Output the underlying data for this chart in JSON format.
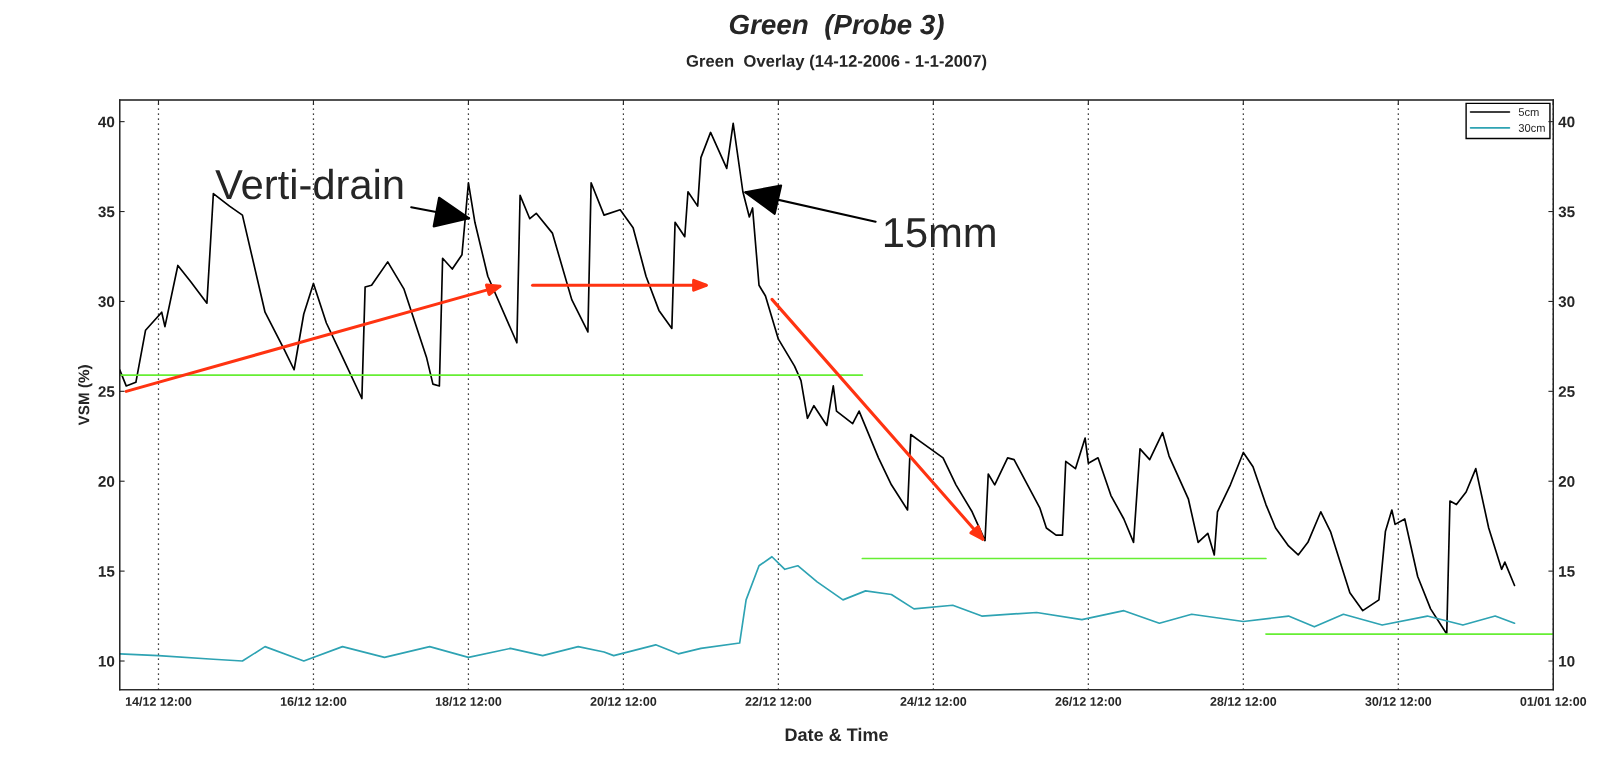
{
  "chart_data": {
    "type": "line",
    "title": "Green  (Probe 3)",
    "subtitle": "Green  Overlay (14-12-2006 - 1-1-2007)",
    "xlabel": "Date & Time",
    "ylabel": "VSM (%)",
    "xlim": [
      "2006-12-14T00:00",
      "2007-01-01T12:00"
    ],
    "xticks": [
      {
        "value": "2006-12-14T12:00",
        "label": "14/12 12:00"
      },
      {
        "value": "2006-12-16T12:00",
        "label": "16/12 12:00"
      },
      {
        "value": "2006-12-18T12:00",
        "label": "18/12 12:00"
      },
      {
        "value": "2006-12-20T12:00",
        "label": "20/12 12:00"
      },
      {
        "value": "2006-12-22T12:00",
        "label": "22/12 12:00"
      },
      {
        "value": "2006-12-24T12:00",
        "label": "24/12 12:00"
      },
      {
        "value": "2006-12-26T12:00",
        "label": "26/12 12:00"
      },
      {
        "value": "2006-12-28T12:00",
        "label": "28/12 12:00"
      },
      {
        "value": "2006-12-30T12:00",
        "label": "30/12 12:00"
      },
      {
        "value": "2007-01-01T12:00",
        "label": "01/01 12:00"
      }
    ],
    "ylim": [
      8.4,
      41.2
    ],
    "yticks": [
      10,
      15,
      20,
      25,
      30,
      35,
      40
    ],
    "y2lim": [
      8.4,
      41.2
    ],
    "y2ticks": [
      10,
      15,
      20,
      25,
      30,
      35,
      40
    ],
    "grid": "x",
    "legend": "top right",
    "annotations": [
      {
        "text": "Verti-drain",
        "x": "2006-12-18T13:00",
        "y": 34.6
      },
      {
        "text": "15mm",
        "x": "2006-12-22T01:00",
        "y": 36.1
      }
    ],
    "series": [
      {
        "name": "5cm",
        "color": "#000000",
        "x": [
          "2006-12-14T00:00",
          "2006-12-14T02:00",
          "2006-12-14T05:00",
          "2006-12-14T08:00",
          "2006-12-14T13:00",
          "2006-12-14T14:00",
          "2006-12-14T18:00",
          "2006-12-14T22:00",
          "2006-12-15T03:00",
          "2006-12-15T04:00",
          "2006-12-15T05:00",
          "2006-12-15T10:00",
          "2006-12-15T14:00",
          "2006-12-15T21:00",
          "2006-12-16T03:00",
          "2006-12-16T06:00",
          "2006-12-16T09:00",
          "2006-12-16T12:00",
          "2006-12-16T16:00",
          "2006-12-16T21:00",
          "2006-12-17T03:00",
          "2006-12-17T04:00",
          "2006-12-17T06:00",
          "2006-12-17T11:00",
          "2006-12-17T16:00",
          "2006-12-17T23:00",
          "2006-12-18T01:00",
          "2006-12-18T03:00",
          "2006-12-18T04:00",
          "2006-12-18T07:00",
          "2006-12-18T10:00",
          "2006-12-18T12:00",
          "2006-12-18T14:00",
          "2006-12-18T18:00",
          "2006-12-19T03:00",
          "2006-12-19T04:00",
          "2006-12-19T07:00",
          "2006-12-19T09:00",
          "2006-12-19T14:00",
          "2006-12-19T20:00",
          "2006-12-20T01:00",
          "2006-12-20T02:00",
          "2006-12-20T06:00",
          "2006-12-20T11:00",
          "2006-12-20T15:00",
          "2006-12-20T19:00",
          "2006-12-20T23:00",
          "2006-12-21T03:00",
          "2006-12-21T04:00",
          "2006-12-21T07:00",
          "2006-12-21T08:00",
          "2006-12-21T11:00",
          "2006-12-21T12:00",
          "2006-12-21T15:00",
          "2006-12-21T20:00",
          "2006-12-21T22:00",
          "2006-12-22T01:00",
          "2006-12-22T03:00",
          "2006-12-22T04:00",
          "2006-12-22T06:00",
          "2006-12-22T08:00",
          "2006-12-22T12:00",
          "2006-12-22T17:00",
          "2006-12-22T19:00",
          "2006-12-22T21:00",
          "2006-12-22T23:00",
          "2006-12-23T03:00",
          "2006-12-23T05:00",
          "2006-12-23T06:00",
          "2006-12-23T11:00",
          "2006-12-23T13:00",
          "2006-12-23T19:00",
          "2006-12-23T23:00",
          "2006-12-24T04:00",
          "2006-12-24T05:00",
          "2006-12-24T08:00",
          "2006-12-24T15:00",
          "2006-12-24T19:00",
          "2006-12-25T00:00",
          "2006-12-25T04:00",
          "2006-12-25T05:00",
          "2006-12-25T07:00",
          "2006-12-25T11:00",
          "2006-12-25T13:00",
          "2006-12-25T21:00",
          "2006-12-25T23:00",
          "2006-12-26T02:00",
          "2006-12-26T04:00",
          "2006-12-26T05:00",
          "2006-12-26T08:00",
          "2006-12-26T11:00",
          "2006-12-26T12:00",
          "2006-12-26T15:00",
          "2006-12-26T19:00",
          "2006-12-26T23:00",
          "2006-12-27T02:00",
          "2006-12-27T04:00",
          "2006-12-27T07:00",
          "2006-12-27T11:00",
          "2006-12-27T13:00",
          "2006-12-27T19:00",
          "2006-12-27T22:00",
          "2006-12-28T01:00",
          "2006-12-28T03:00",
          "2006-12-28T04:00",
          "2006-12-28T08:00",
          "2006-12-28T12:00",
          "2006-12-28T15:00",
          "2006-12-28T19:00",
          "2006-12-28T22:00",
          "2006-12-29T02:00",
          "2006-12-29T05:00",
          "2006-12-29T08:00",
          "2006-12-29T12:00",
          "2006-12-29T15:00",
          "2006-12-29T21:00",
          "2006-12-30T01:00",
          "2006-12-30T06:00",
          "2006-12-30T08:00",
          "2006-12-30T10:00",
          "2006-12-30T11:00",
          "2006-12-30T14:00",
          "2006-12-30T18:00",
          "2006-12-30T22:00",
          "2006-12-31T03:00",
          "2006-12-31T04:00",
          "2006-12-31T06:00",
          "2006-12-31T09:00",
          "2006-12-31T12:00",
          "2006-12-31T16:00",
          "2006-12-31T20:00",
          "2006-12-31T21:00",
          "2007-01-01T00:00"
        ],
        "values": [
          26.2,
          25.3,
          25.5,
          28.4,
          29.4,
          28.6,
          32.0,
          31.1,
          29.9,
          32.9,
          36.0,
          35.3,
          34.8,
          29.4,
          27.3,
          26.2,
          29.3,
          31.0,
          28.8,
          26.9,
          24.6,
          30.8,
          30.9,
          32.2,
          30.7,
          26.9,
          25.4,
          25.3,
          32.4,
          31.8,
          32.6,
          36.6,
          34.4,
          31.4,
          27.7,
          35.9,
          34.6,
          34.9,
          33.8,
          30.1,
          28.3,
          36.6,
          34.8,
          35.1,
          34.1,
          31.4,
          29.5,
          28.5,
          34.4,
          33.6,
          36.1,
          35.3,
          38.0,
          39.4,
          37.4,
          39.9,
          36.1,
          34.7,
          35.2,
          30.9,
          30.3,
          27.9,
          26.4,
          25.6,
          23.5,
          24.2,
          23.1,
          25.3,
          23.9,
          23.2,
          23.9,
          21.3,
          19.8,
          18.4,
          22.6,
          22.2,
          21.3,
          19.8,
          18.3,
          16.7,
          20.4,
          19.8,
          21.3,
          21.2,
          18.5,
          17.4,
          17.0,
          17.0,
          21.1,
          20.7,
          22.4,
          21.0,
          21.3,
          19.2,
          17.9,
          16.6,
          21.8,
          21.2,
          22.7,
          21.4,
          19.0,
          16.6,
          17.1,
          15.9,
          18.3,
          19.8,
          21.6,
          20.8,
          18.7,
          17.4,
          16.4,
          15.9,
          16.6,
          18.3,
          17.2,
          13.8,
          12.8,
          13.4,
          17.2,
          18.4,
          17.6,
          17.9,
          14.7,
          12.9,
          11.5,
          18.9,
          18.7,
          19.4,
          20.7,
          17.4,
          15.1,
          15.5,
          14.2
        ]
      },
      {
        "name": "30cm",
        "color": "#2ea3b3",
        "x": [
          "2006-12-14T00:00",
          "2006-12-14T12:00",
          "2006-12-15T05:00",
          "2006-12-15T14:00",
          "2006-12-15T21:00",
          "2006-12-16T09:00",
          "2006-12-16T21:00",
          "2006-12-17T10:00",
          "2006-12-18T00:00",
          "2006-12-18T12:00",
          "2006-12-19T01:00",
          "2006-12-19T11:00",
          "2006-12-19T22:00",
          "2006-12-20T06:00",
          "2006-12-20T09:00",
          "2006-12-20T22:00",
          "2006-12-21T05:00",
          "2006-12-21T12:00",
          "2006-12-22T00:00",
          "2006-12-22T02:00",
          "2006-12-22T06:00",
          "2006-12-22T10:00",
          "2006-12-22T14:00",
          "2006-12-22T18:00",
          "2006-12-23T00:00",
          "2006-12-23T08:00",
          "2006-12-23T15:00",
          "2006-12-23T23:00",
          "2006-12-24T06:00",
          "2006-12-24T18:00",
          "2006-12-25T03:00",
          "2006-12-25T20:00",
          "2006-12-26T10:00",
          "2006-12-26T23:00",
          "2006-12-27T10:00",
          "2006-12-27T20:00",
          "2006-12-28T12:00",
          "2006-12-29T02:00",
          "2006-12-29T10:00",
          "2006-12-29T19:00",
          "2006-12-30T07:00",
          "2006-12-30T21:00",
          "2006-12-31T08:00",
          "2006-12-31T18:00",
          "2007-01-01T00:00"
        ],
        "values": [
          10.4,
          10.3,
          10.1,
          10.0,
          10.8,
          10.0,
          10.8,
          10.2,
          10.8,
          10.2,
          10.7,
          10.3,
          10.8,
          10.5,
          10.3,
          10.9,
          10.4,
          10.7,
          11.0,
          13.4,
          15.3,
          15.8,
          15.1,
          15.3,
          14.4,
          13.4,
          13.9,
          13.7,
          12.9,
          13.1,
          12.5,
          12.7,
          12.3,
          12.8,
          12.1,
          12.6,
          12.2,
          12.5,
          11.9,
          12.6,
          12.0,
          12.5,
          12.0,
          12.5,
          12.1
        ]
      },
      {
        "color": "#66ee33",
        "x": [
          "2006-12-14T00:00",
          "2006-12-23T14:00"
        ],
        "values": [
          25.9,
          25.9
        ]
      },
      {
        "color": "#66ee33",
        "x": [
          "2006-12-23T14:00",
          "2006-12-28T19:00"
        ],
        "values": [
          15.7,
          15.7
        ]
      },
      {
        "color": "#66ee33",
        "x": [
          "2006-12-28T19:00",
          "2007-01-01T12:00"
        ],
        "values": [
          11.5,
          11.5
        ]
      }
    ]
  }
}
